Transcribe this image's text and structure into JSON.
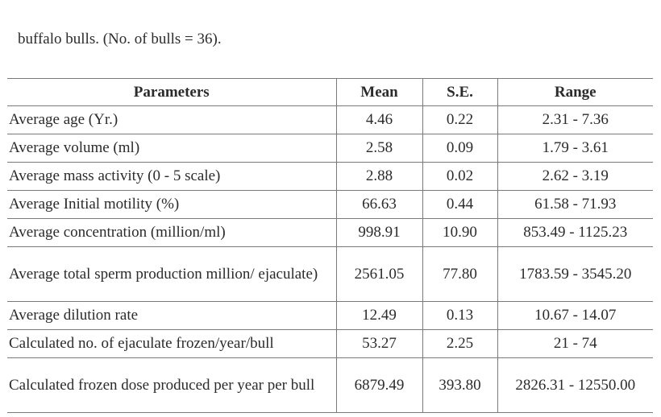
{
  "caption": "buffalo bulls. (No. of bulls = 36).",
  "table": {
    "headers": {
      "parameters": "Parameters",
      "mean": "Mean",
      "se": "S.E.",
      "range": "Range"
    },
    "rows": [
      {
        "parameter": "Average age (Yr.)",
        "mean": "4.46",
        "se": "0.22",
        "range": "2.31 - 7.36"
      },
      {
        "parameter": "Average volume (ml)",
        "mean": "2.58",
        "se": "0.09",
        "range": "1.79 - 3.61"
      },
      {
        "parameter": "Average mass activity (0 - 5 scale)",
        "mean": "2.88",
        "se": "0.02",
        "range": "2.62 - 3.19"
      },
      {
        "parameter": "Average Initial motility (%)",
        "mean": "66.63",
        "se": "0.44",
        "range": "61.58 - 71.93"
      },
      {
        "parameter": "Average concentration (million/ml)",
        "mean": "998.91",
        "se": "10.90",
        "range": "853.49 - 1125.23"
      },
      {
        "parameter": "Average total sperm production million/ ejaculate)",
        "mean": "2561.05",
        "se": "77.80",
        "range": "1783.59 - 3545.20"
      },
      {
        "parameter": "Average dilution rate",
        "mean": "12.49",
        "se": "0.13",
        "range": "10.67 - 14.07"
      },
      {
        "parameter": "Calculated no. of ejaculate frozen/year/bull",
        "mean": "53.27",
        "se": "2.25",
        "range": "21 - 74"
      },
      {
        "parameter": "Calculated frozen dose produced per year per bull",
        "mean": "6879.49",
        "se": "393.80",
        "range": "2826.31 - 12550.00"
      }
    ]
  }
}
